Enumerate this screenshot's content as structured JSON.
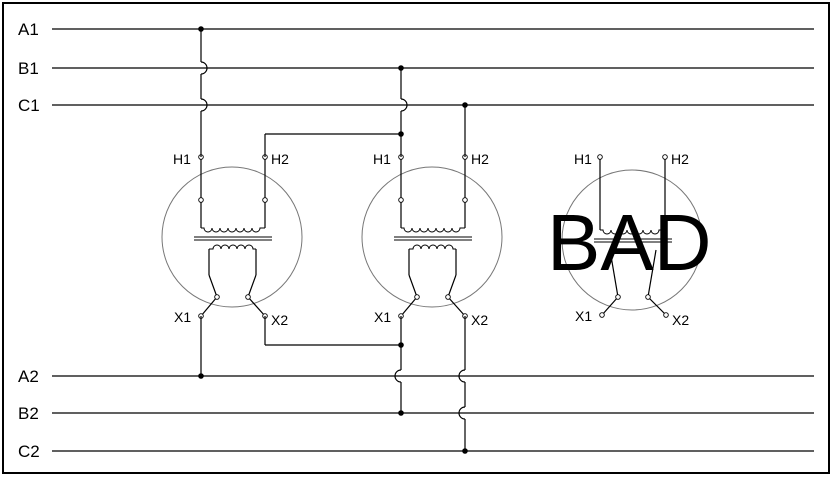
{
  "primary_bus": [
    "A1",
    "B1",
    "C1"
  ],
  "secondary_bus": [
    "A2",
    "B2",
    "C2"
  ],
  "transformers": [
    {
      "h1": "H1",
      "h2": "H2",
      "x1": "X1",
      "x2": "X2",
      "stamp": ""
    },
    {
      "h1": "H1",
      "h2": "H2",
      "x1": "X1",
      "x2": "X2",
      "stamp": ""
    },
    {
      "h1": "H1",
      "h2": "H2",
      "x1": "X1",
      "x2": "X2",
      "stamp": "BAD"
    }
  ]
}
